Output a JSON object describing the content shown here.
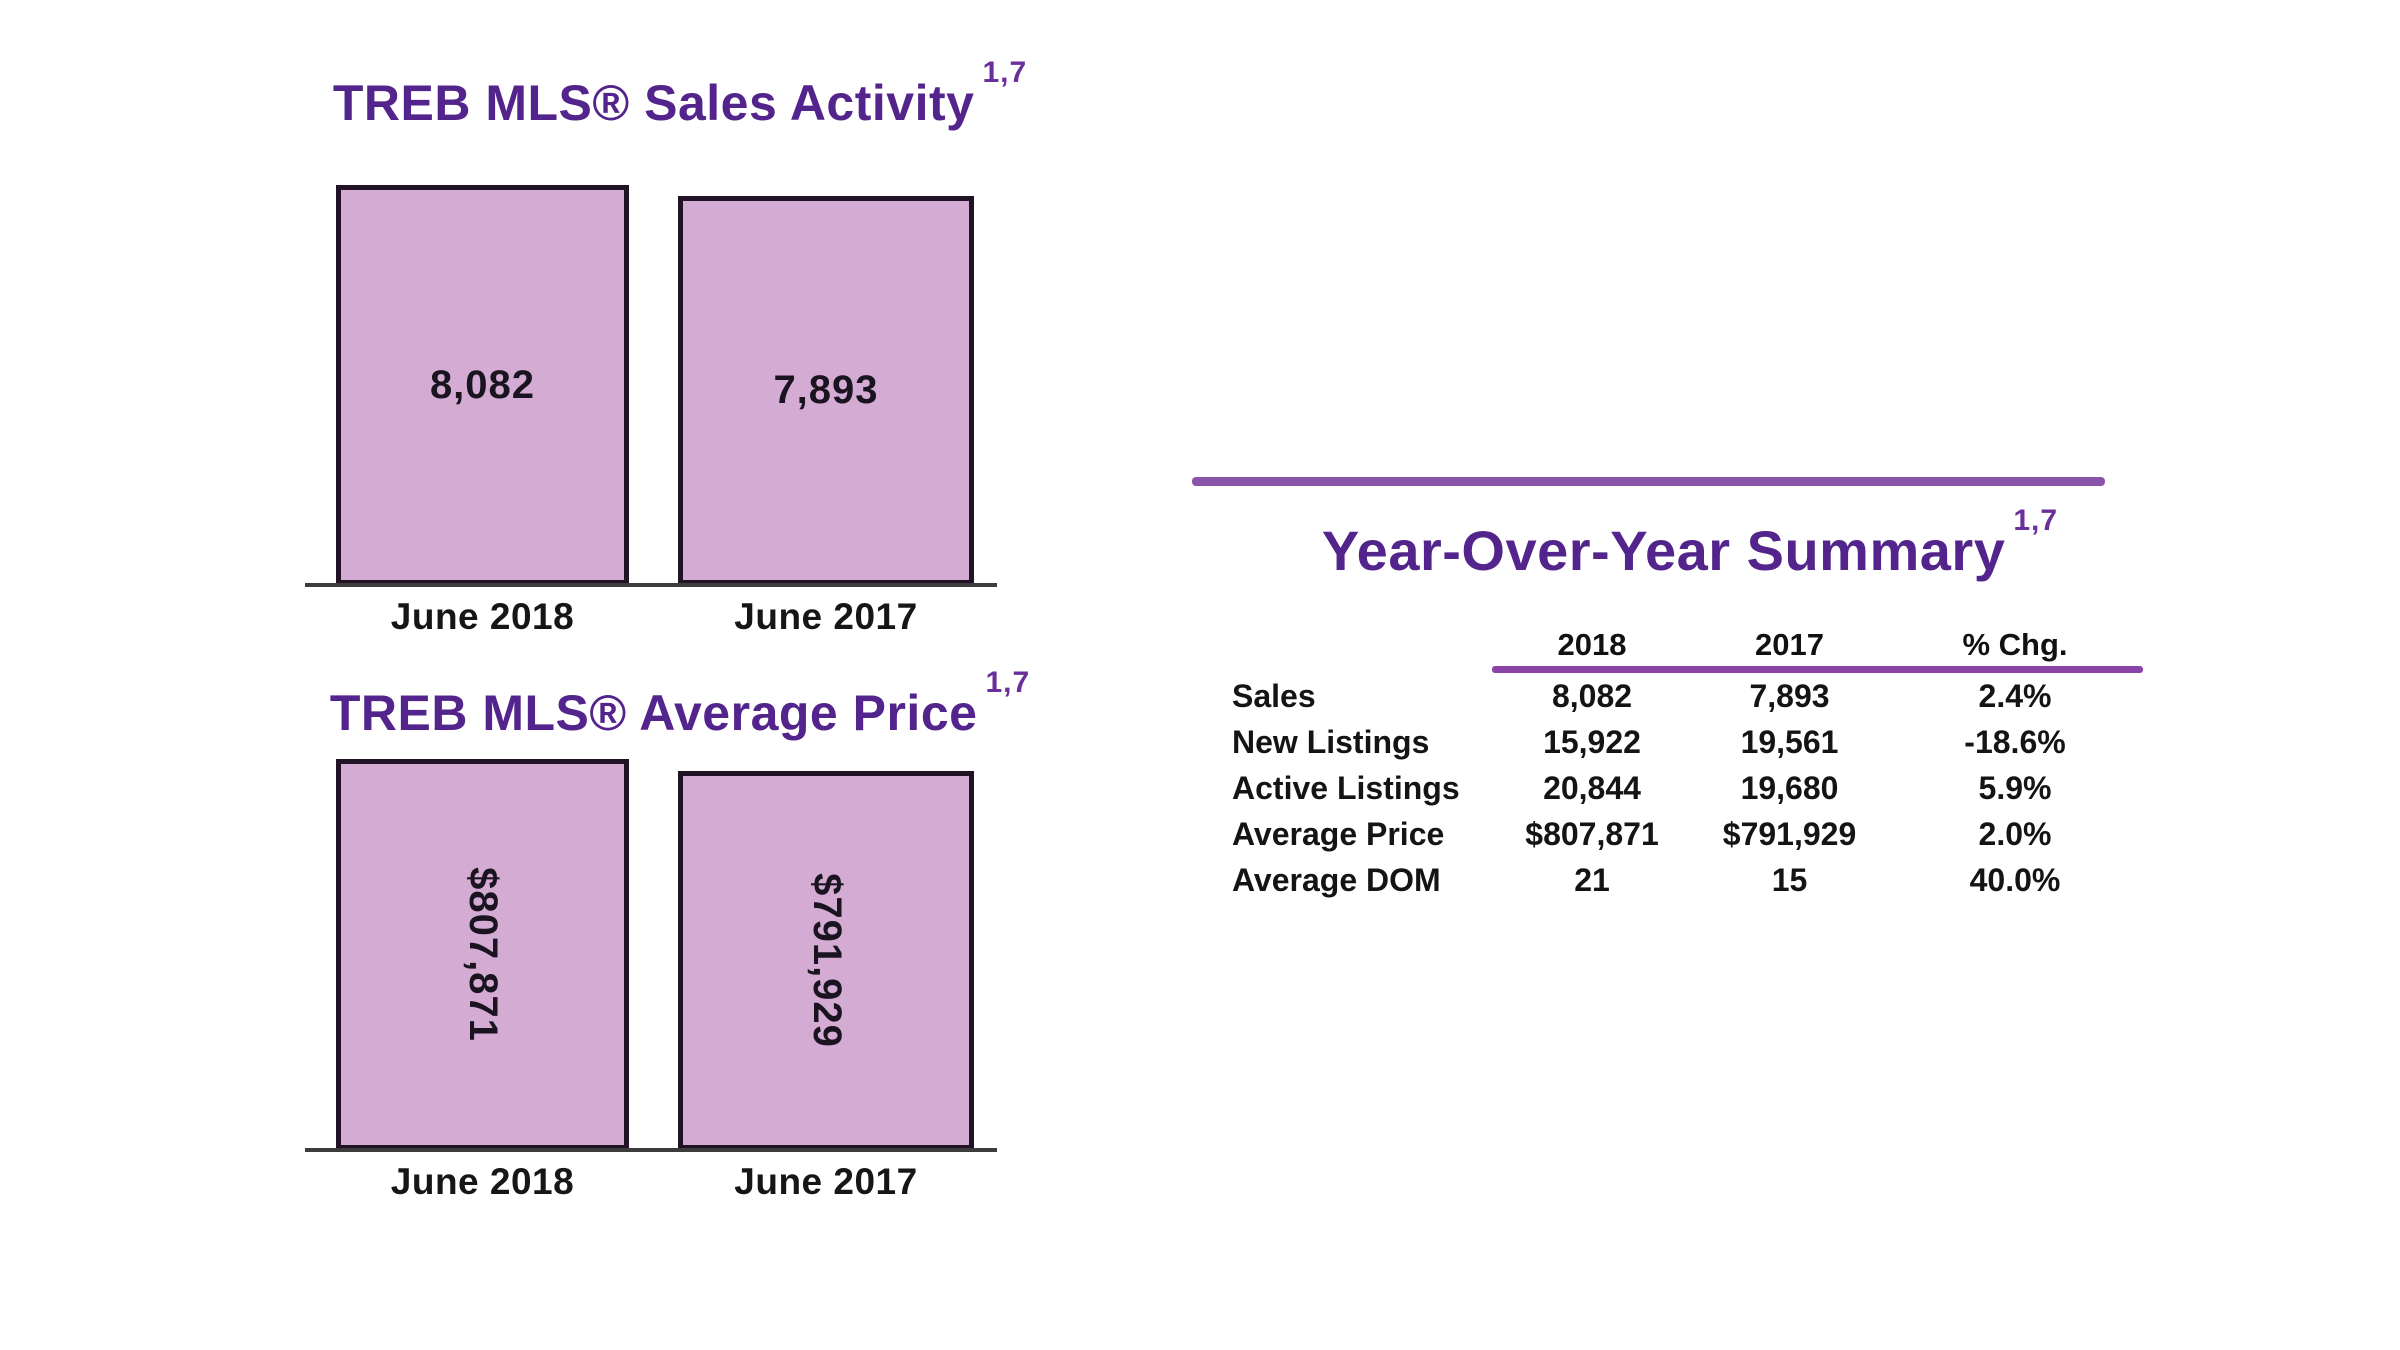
{
  "colors": {
    "title_purple": "#53258c",
    "bar_fill": "#d4abd3",
    "bar_border": "#221226",
    "divider_purple": "#8a55a8",
    "table_rule_purple": "#8a44a8",
    "axis_gray": "#3c3c3c",
    "value_text": "#1a1420"
  },
  "chart_data": [
    {
      "type": "bar",
      "title": "TREB MLS® Sales Activity",
      "title_superscript": "1,7",
      "categories": [
        "June 2018",
        "June 2017"
      ],
      "values": [
        8082,
        7893
      ],
      "value_labels": [
        "8,082",
        "7,893"
      ],
      "value_label_orientation": "horizontal",
      "xlabel": "",
      "ylabel": "",
      "ylim": [
        0,
        8500
      ],
      "grid": false,
      "legend": false,
      "bar_color": "#d4abd3"
    },
    {
      "type": "bar",
      "title": "TREB MLS® Average Price",
      "title_superscript": "1,7",
      "categories": [
        "June 2018",
        "June 2017"
      ],
      "values": [
        807871,
        791929
      ],
      "value_labels": [
        "$807,871",
        "$791,929"
      ],
      "value_label_orientation": "vertical",
      "xlabel": "",
      "ylabel": "",
      "ylim": [
        0,
        850000
      ],
      "grid": false,
      "legend": false,
      "bar_color": "#d4abd3"
    },
    {
      "type": "table",
      "title": "Year-Over-Year Summary",
      "title_superscript": "1,7",
      "columns": [
        "2018",
        "2017",
        "% Chg."
      ],
      "rows": [
        {
          "label": "Sales",
          "y2018": "8,082",
          "y2017": "7,893",
          "chg": "2.4%"
        },
        {
          "label": "New Listings",
          "y2018": "15,922",
          "y2017": "19,561",
          "chg": "-18.6%"
        },
        {
          "label": "Active Listings",
          "y2018": "20,844",
          "y2017": "19,680",
          "chg": "5.9%"
        },
        {
          "label": "Average Price",
          "y2018": "$807,871",
          "y2017": "$791,929",
          "chg": "2.0%"
        },
        {
          "label": "Average DOM",
          "y2018": "21",
          "y2017": "15",
          "chg": "40.0%"
        }
      ]
    }
  ]
}
